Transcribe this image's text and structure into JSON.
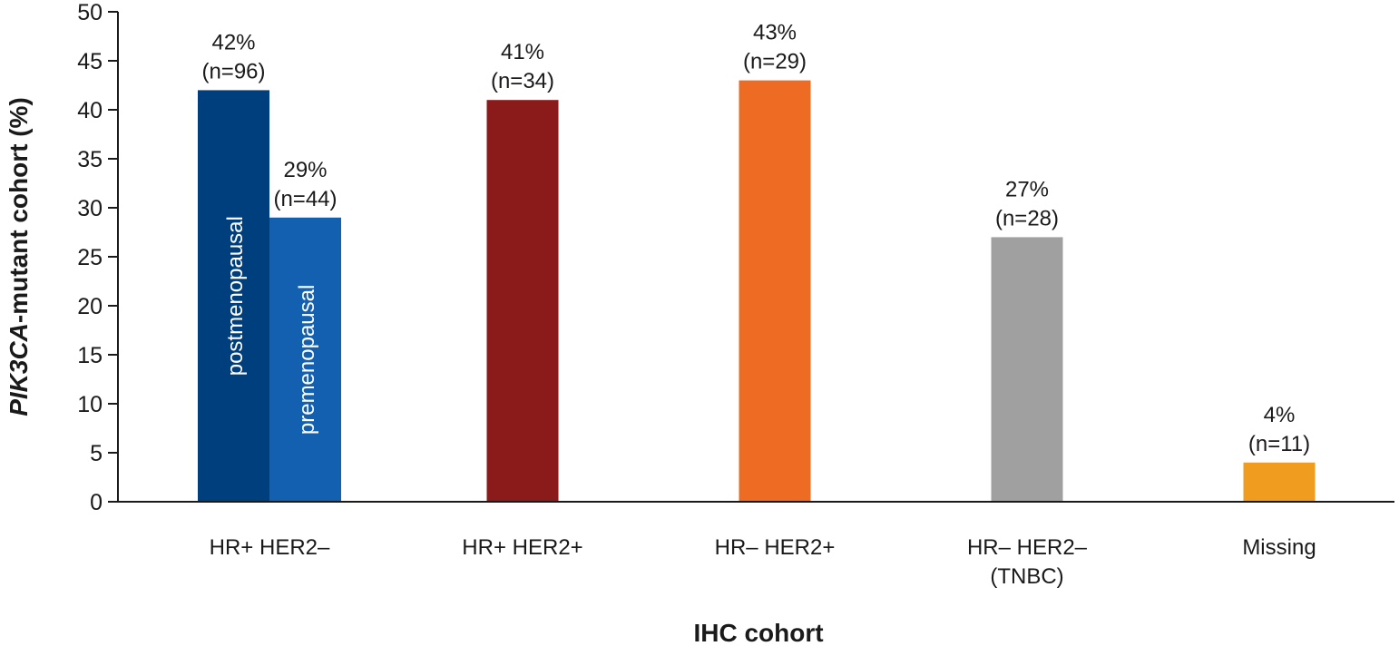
{
  "chart_data": {
    "type": "bar",
    "title": "",
    "xlabel": "IHC cohort",
    "ylabel_parts": [
      {
        "text": "PIK3CA",
        "italic": true
      },
      {
        "text": "-mutant cohort (%)",
        "italic": false
      }
    ],
    "ylim": [
      0,
      50
    ],
    "yticks": [
      "0",
      "5",
      "10",
      "15",
      "20",
      "25",
      "30",
      "35",
      "40",
      "45",
      "50"
    ],
    "grid": false,
    "legend": "none",
    "categories": [
      {
        "lines": [
          "HR+ HER2–"
        ]
      },
      {
        "lines": [
          "HR+ HER2+"
        ]
      },
      {
        "lines": [
          "HR– HER2+"
        ]
      },
      {
        "lines": [
          "HR– HER2–",
          "(TNBC)"
        ]
      },
      {
        "lines": [
          "Missing"
        ]
      }
    ],
    "bars": [
      {
        "category": 0,
        "sub": "postmenopausal",
        "value": 42,
        "pct_label": "42%",
        "n_label": "(n=96)",
        "color": "#003f7d"
      },
      {
        "category": 0,
        "sub": "premenopausal",
        "value": 29,
        "pct_label": "29%",
        "n_label": "(n=44)",
        "color": "#1460b0"
      },
      {
        "category": 1,
        "sub": "",
        "value": 41,
        "pct_label": "41%",
        "n_label": "(n=34)",
        "color": "#8b1a1a"
      },
      {
        "category": 2,
        "sub": "",
        "value": 43,
        "pct_label": "43%",
        "n_label": "(n=29)",
        "color": "#ee6b23"
      },
      {
        "category": 3,
        "sub": "",
        "value": 27,
        "pct_label": "27%",
        "n_label": "(n=28)",
        "color": "#a0a0a0"
      },
      {
        "category": 4,
        "sub": "",
        "value": 4,
        "pct_label": "4%",
        "n_label": "(n=11)",
        "color": "#f09c1e"
      }
    ]
  }
}
